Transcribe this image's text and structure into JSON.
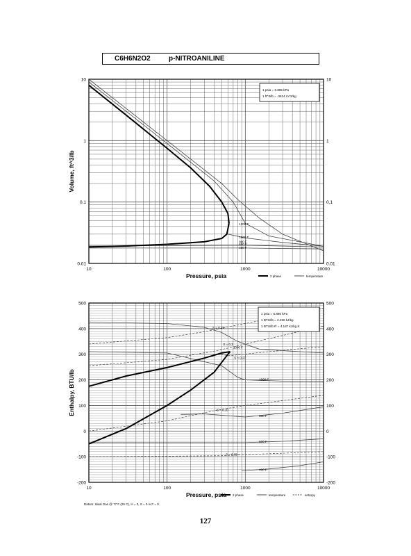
{
  "header": {
    "formula": "C6H6N2O2",
    "name": "p-NITROANILINE"
  },
  "page_number": "127",
  "footer_note": "Datum: Ideal Gas @ 77 F (25 C), H = 0, S = 0 in F = 0",
  "colors": {
    "ink": "#000000",
    "grid": "#555555",
    "thin": "#444444"
  },
  "chart_data": [
    {
      "type": "line",
      "xlabel": "Pressure,  psia",
      "ylabel": "Volume, ft^3/lb",
      "xscale": "log",
      "yscale": "log",
      "xlim": [
        10,
        10000
      ],
      "ylim": [
        0.01,
        10
      ],
      "x_ticks": [
        "10",
        "100",
        "1000",
        "10000"
      ],
      "y_ticks": [
        "0.01",
        "0.1",
        "1",
        "10"
      ],
      "grid": true,
      "info_box": [
        "1 psia = 6.895 kPa",
        "1 ft^3/lb = .0624 m^3/kg"
      ],
      "legend": [
        "2 phase",
        "temperature"
      ],
      "saturation_liquid": [
        [
          10,
          0.0185
        ],
        [
          30,
          0.0192
        ],
        [
          100,
          0.0205
        ],
        [
          300,
          0.0225
        ],
        [
          500,
          0.0255
        ],
        [
          580,
          0.03
        ],
        [
          620,
          0.045
        ]
      ],
      "saturation_vapor": [
        [
          10,
          8.0
        ],
        [
          30,
          2.6
        ],
        [
          100,
          0.75
        ],
        [
          200,
          0.36
        ],
        [
          350,
          0.18
        ],
        [
          500,
          0.1
        ],
        [
          600,
          0.065
        ],
        [
          620,
          0.045
        ]
      ],
      "isotherms": [
        {
          "label": "1200 F",
          "points": [
            [
              10,
              10.0
            ],
            [
              100,
              1.0
            ],
            [
              500,
              0.2
            ],
            [
              800,
              0.11
            ],
            [
              1500,
              0.055
            ],
            [
              3000,
              0.03
            ],
            [
              10000,
              0.016
            ]
          ]
        },
        {
          "label": "1000 F",
          "points": [
            [
              10,
              9.0
            ],
            [
              100,
              0.9
            ],
            [
              400,
              0.22
            ],
            [
              700,
              0.1
            ],
            [
              1000,
              0.045
            ],
            [
              2000,
              0.028
            ],
            [
              10000,
              0.019
            ]
          ]
        },
        {
          "label": "800 F",
          "points": [
            [
              600,
              0.03
            ],
            [
              1000,
              0.026
            ],
            [
              3000,
              0.022
            ],
            [
              10000,
              0.019
            ]
          ]
        },
        {
          "label": "600 F",
          "points": [
            [
              10,
              0.0192
            ],
            [
              100,
              0.0195
            ],
            [
              1000,
              0.0198
            ],
            [
              10000,
              0.0185
            ]
          ]
        },
        {
          "label": "400 F",
          "points": [
            [
              10,
              0.0178
            ],
            [
              100,
              0.0178
            ],
            [
              1000,
              0.0178
            ],
            [
              10000,
              0.0172
            ]
          ]
        }
      ]
    },
    {
      "type": "line",
      "xlabel": "Pressure,  psia",
      "ylabel": "Enthalpy, BTU/lb",
      "xscale": "log",
      "yscale": "linear",
      "xlim": [
        10,
        10000
      ],
      "ylim": [
        -200,
        500
      ],
      "x_ticks": [
        "10",
        "100",
        "1000",
        "10000"
      ],
      "y_ticks": [
        "-200",
        "-100",
        "0",
        "100",
        "200",
        "300",
        "400",
        "500"
      ],
      "grid": true,
      "info_box": [
        "1 psia = 6.895 kPa",
        "1 BTU/lb = 2.326 kJ/kg",
        "1 BTU/lb R = 4.187 kJ/kg K"
      ],
      "legend": [
        "2 phase",
        "temperature",
        "entropy"
      ],
      "saturation_liquid": [
        [
          10,
          -50
        ],
        [
          30,
          10
        ],
        [
          100,
          100
        ],
        [
          200,
          160
        ],
        [
          400,
          230
        ],
        [
          600,
          300
        ],
        [
          640,
          310
        ]
      ],
      "saturation_vapor": [
        [
          10,
          175
        ],
        [
          30,
          215
        ],
        [
          100,
          248
        ],
        [
          300,
          285
        ],
        [
          500,
          305
        ],
        [
          640,
          310
        ]
      ],
      "isotherms": [
        {
          "label": "1200 F",
          "points": [
            [
              10,
              425
            ],
            [
              100,
              420
            ],
            [
              300,
              405
            ],
            [
              500,
              385
            ],
            [
              800,
              350
            ],
            [
              1500,
              320
            ],
            [
              5000,
              310
            ],
            [
              10000,
              305
            ]
          ]
        },
        {
          "label": "1000 F",
          "points": [
            [
              10,
              310
            ],
            [
              100,
              305
            ],
            [
              500,
              255
            ],
            [
              800,
              210
            ],
            [
              1000,
              200
            ],
            [
              3000,
              195
            ],
            [
              10000,
              195
            ]
          ]
        },
        {
          "label": "800 F",
          "points": [
            [
              150,
              65
            ],
            [
              300,
              67
            ],
            [
              600,
              60
            ],
            [
              1000,
              55
            ],
            [
              3000,
              70
            ],
            [
              10000,
              95
            ]
          ]
        },
        {
          "label": "600 F",
          "points": [
            [
              10,
              -45
            ],
            [
              100,
              -45
            ],
            [
              1000,
              -45
            ],
            [
              3000,
              -40
            ],
            [
              10000,
              -30
            ]
          ]
        },
        {
          "label": "400 F",
          "points": [
            [
              900,
              -155
            ],
            [
              2000,
              -148
            ],
            [
              5000,
              -135
            ],
            [
              10000,
              -120
            ]
          ]
        }
      ],
      "entropy_lines": [
        {
          "label": "S = 0.35",
          "points": [
            [
              10,
              340
            ],
            [
              100,
              365
            ],
            [
              300,
              388
            ],
            [
              1000,
              420
            ],
            [
              10000,
              480
            ]
          ]
        },
        {
          "label": "S = 0.3",
          "points": [
            [
              10,
              255
            ],
            [
              100,
              280
            ],
            [
              450,
              315
            ],
            [
              1000,
              340
            ],
            [
              10000,
              410
            ]
          ]
        },
        {
          "label": "S = 0.27",
          "points": [
            [
              400,
              300
            ],
            [
              650,
              295
            ],
            [
              2000,
              310
            ],
            [
              10000,
              330
            ]
          ]
        },
        {
          "label": "S = 0.10",
          "points": [
            [
              10,
              0
            ],
            [
              100,
              40
            ],
            [
              400,
              80
            ],
            [
              1000,
              100
            ],
            [
              10000,
              140
            ]
          ]
        },
        {
          "label": "S = 0.03",
          "points": [
            [
              10,
              -100
            ],
            [
              100,
              -98
            ],
            [
              500,
              -96
            ],
            [
              1000,
              -92
            ],
            [
              10000,
              -80
            ]
          ]
        }
      ],
      "curve_labels": [
        {
          "text": "S = 0.35",
          "x": 380,
          "y": 400
        },
        {
          "text": "S = 0.3",
          "x": 520,
          "y": 335
        },
        {
          "text": "1000 F",
          "x": 700,
          "y": 322
        },
        {
          "text": "S = 0.27",
          "x": 720,
          "y": 282
        },
        {
          "text": "1000 F",
          "x": 1500,
          "y": 197
        },
        {
          "text": "S = 0.10",
          "x": 430,
          "y": 78
        },
        {
          "text": "800 F",
          "x": 1500,
          "y": 55
        },
        {
          "text": "600 F",
          "x": 1500,
          "y": -45
        },
        {
          "text": "S = 0.03",
          "x": 560,
          "y": -96
        },
        {
          "text": "400 F",
          "x": 1500,
          "y": -155
        }
      ]
    }
  ]
}
